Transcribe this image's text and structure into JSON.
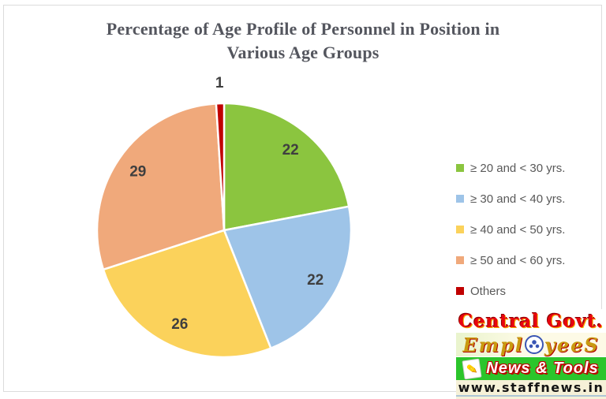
{
  "chart_data": {
    "type": "pie",
    "title": "Percentage of Age Profile of Personnel in Position in Various Age Groups",
    "title_line1": "Percentage of Age Profile of Personnel in Position in",
    "title_line2": "Various Age Groups",
    "series": [
      {
        "label": "≥ 20 and < 30 yrs.",
        "value": 22,
        "color": "#8bc53f"
      },
      {
        "label": "≥ 30 and < 40 yrs.",
        "value": 22,
        "color": "#9ec4e8"
      },
      {
        "label": "≥ 40 and < 50 yrs.",
        "value": 26,
        "color": "#fbd25b"
      },
      {
        "label": "≥ 50 and < 60 yrs.",
        "value": 29,
        "color": "#f0a97b"
      },
      {
        "label": "Others",
        "value": 1,
        "color": "#c00000"
      }
    ],
    "start_angle_deg": 0,
    "direction": "clockwise",
    "legend_position": "right",
    "data_label_color": "#3f3f3f",
    "slice_separator_color": "#ffffff"
  },
  "watermark": {
    "line1": "Central Govt.",
    "line2_prefix": "Empl",
    "line2_suffix": "yeeS",
    "line3": "News & Tools",
    "line4": "www.staffnews.in"
  }
}
